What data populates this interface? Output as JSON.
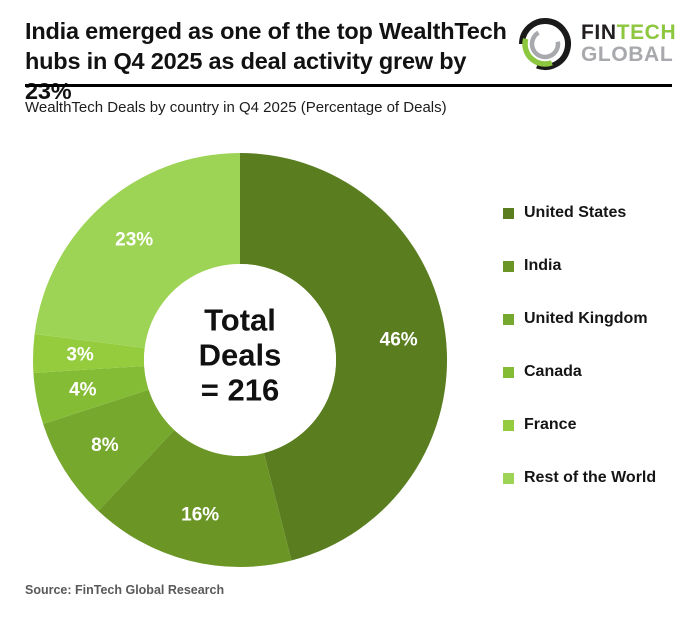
{
  "page": {
    "background": "#ffffff"
  },
  "header": {
    "title_line1": "India emerged as one of the top WealthTech",
    "title_line2": "hubs in Q4 2025 as deal activity grew by 23%",
    "logo": {
      "word1": "FIN",
      "word2": "TECH",
      "word3": "GLOBAL",
      "colors": {
        "word1": "#231f20",
        "word2": "#8dc63f",
        "word3": "#a7a9ac"
      }
    }
  },
  "subtitle": "WealthTech Deals by country in Q4 2025 (Percentage of Deals)",
  "chart_data": {
    "type": "pie",
    "variant": "donut",
    "title": "WealthTech Deals by country in Q4 2025 (Percentage of Deals)",
    "total_deals": 216,
    "center_label_lines": [
      "Total",
      "Deals",
      "= 216"
    ],
    "unit": "percent",
    "start_angle_deg": 0,
    "direction": "clockwise",
    "legend_position": "right",
    "series": [
      {
        "name": "United States",
        "value": 46,
        "label": "46%",
        "color": "#5a7d20"
      },
      {
        "name": "India",
        "value": 16,
        "label": "16%",
        "color": "#6b9525"
      },
      {
        "name": "United Kingdom",
        "value": 8,
        "label": "8%",
        "color": "#76a82e"
      },
      {
        "name": "Canada",
        "value": 4,
        "label": "4%",
        "color": "#84bc35"
      },
      {
        "name": "France",
        "value": 3,
        "label": "3%",
        "color": "#94cc3e"
      },
      {
        "name": "Rest of the World",
        "value": 23,
        "label": "23%",
        "color": "#9ed455"
      }
    ]
  },
  "footer": {
    "source": "Source: FinTech Global Research"
  }
}
